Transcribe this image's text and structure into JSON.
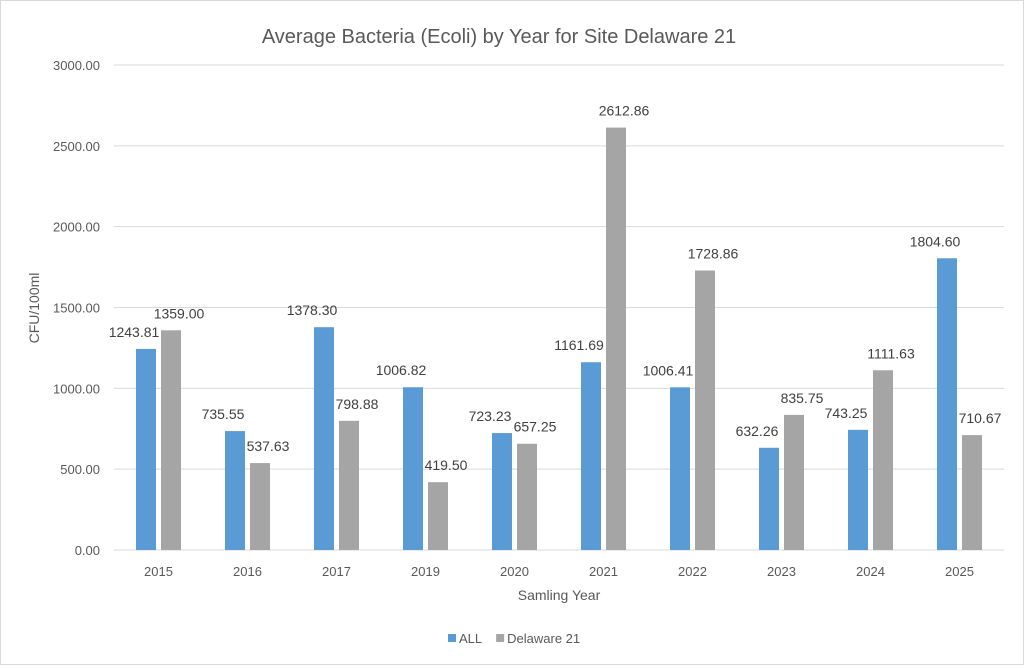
{
  "chart_data": {
    "type": "bar",
    "title": "Average Bacteria (Ecoli) by Year for Site Delaware 21",
    "xlabel": "Samling Year",
    "ylabel": "CFU/100ml",
    "ylim": [
      0,
      3000
    ],
    "yticks": [
      "0.00",
      "500.00",
      "1000.00",
      "1500.00",
      "2000.00",
      "2500.00",
      "3000.00"
    ],
    "grid": true,
    "legend_position": "bottom",
    "categories": [
      "2015",
      "2016",
      "2017",
      "2019",
      "2020",
      "2021",
      "2022",
      "2023",
      "2024",
      "2025"
    ],
    "series": [
      {
        "name": "ALL",
        "color": "#5b9bd5",
        "values": [
          1243.81,
          735.55,
          1378.3,
          1006.82,
          723.23,
          1161.69,
          1006.41,
          632.26,
          743.25,
          1804.6
        ],
        "labels": [
          "1243.81",
          "735.55",
          "1378.30",
          "1006.82",
          "723.23",
          "1161.69",
          "1006.41",
          "632.26",
          "743.25",
          "1804.60"
        ]
      },
      {
        "name": "Delaware 21",
        "color": "#a5a5a5",
        "values": [
          1359.0,
          537.63,
          798.88,
          419.5,
          657.25,
          2612.86,
          1728.86,
          835.75,
          1111.63,
          710.67
        ],
        "labels": [
          "1359.00",
          "537.63",
          "798.88",
          "419.50",
          "657.25",
          "2612.86",
          "1728.86",
          "835.75",
          "1111.63",
          "710.67"
        ]
      }
    ]
  }
}
